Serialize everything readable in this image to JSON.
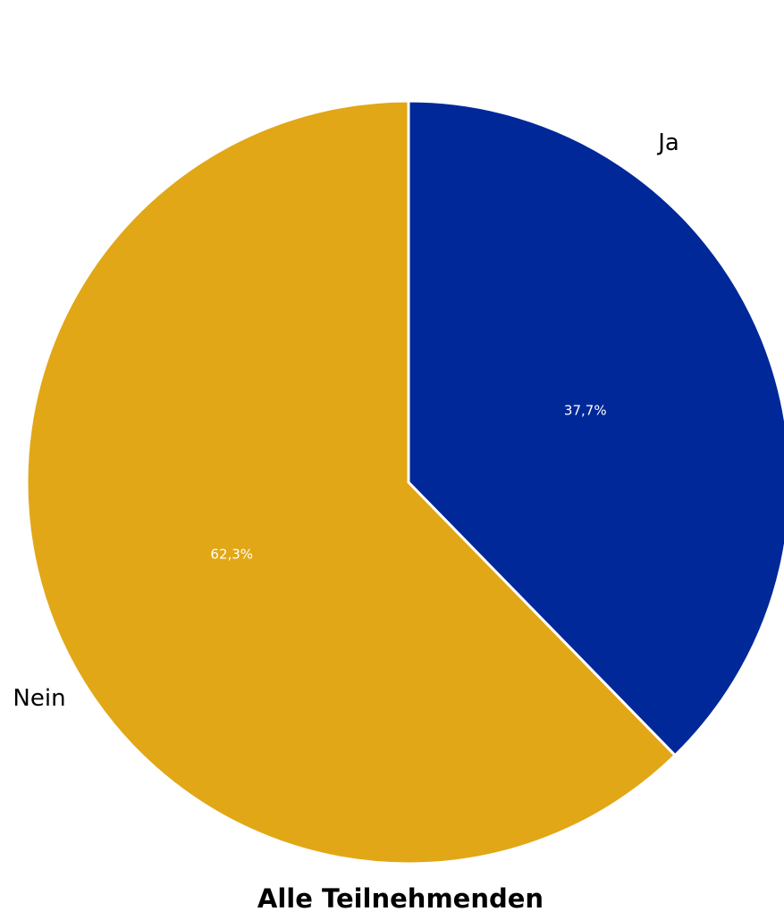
{
  "chart_data": {
    "type": "pie",
    "title": "Alle Teilnehmenden",
    "slices": [
      {
        "label": "Ja",
        "value": 37.7,
        "value_label": "37,7%",
        "color": "#002899"
      },
      {
        "label": "Nein",
        "value": 62.3,
        "value_label": "62,3%",
        "color": "#E1A716"
      }
    ],
    "start_angle": "12 o'clock",
    "direction": "clockwise",
    "legend": "none"
  }
}
